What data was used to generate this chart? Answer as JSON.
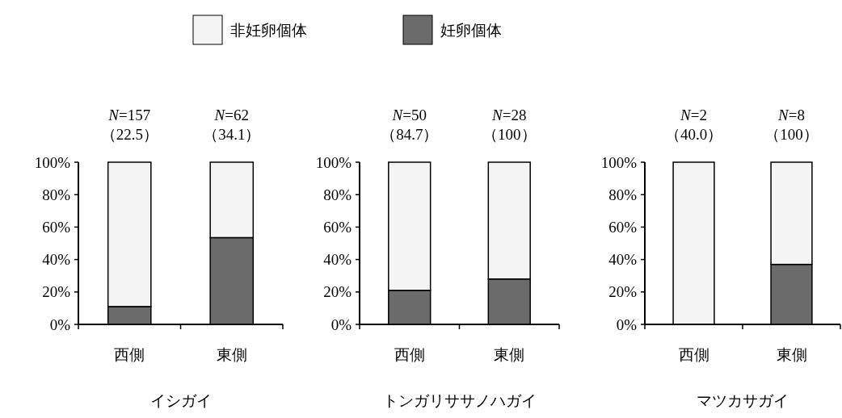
{
  "chart_data": [
    {
      "type": "bar",
      "stacked": true,
      "title": "イシガイ",
      "categories": [
        "西側",
        "東側"
      ],
      "ylim": [
        0,
        100
      ],
      "yticks": [
        {
          "value": 0,
          "label": "0%"
        },
        {
          "value": 20,
          "label": "20%"
        },
        {
          "value": 40,
          "label": "40%"
        },
        {
          "value": 60,
          "label": "60%"
        },
        {
          "value": 80,
          "label": "80%"
        },
        {
          "value": 100,
          "label": "100%"
        }
      ],
      "legend": "top",
      "series": [
        {
          "name": "妊卵個体",
          "color": "#6b6b6b",
          "values": [
            11,
            53.5
          ]
        },
        {
          "name": "非妊卵個体",
          "color": "#f4f4f4",
          "values": [
            89,
            46.5
          ]
        }
      ],
      "annotations": [
        {
          "text": "N=157\n（22.5）",
          "x": "西側",
          "y": 100
        },
        {
          "text": "N=62\n（34.1）",
          "x": "東側",
          "y": 100
        }
      ]
    },
    {
      "type": "bar",
      "stacked": true,
      "title": "トンガリササノハガイ",
      "categories": [
        "西側",
        "東側"
      ],
      "ylim": [
        0,
        100
      ],
      "yticks": [
        {
          "value": 0,
          "label": "0%"
        },
        {
          "value": 20,
          "label": "20%"
        },
        {
          "value": 40,
          "label": "40%"
        },
        {
          "value": 60,
          "label": "60%"
        },
        {
          "value": 80,
          "label": "80%"
        },
        {
          "value": 100,
          "label": "100%"
        }
      ],
      "series": [
        {
          "color": "#6b6b6b",
          "values": [
            21,
            28
          ]
        },
        {
          "color": "#f4f4f4",
          "values": [
            79,
            72
          ]
        }
      ],
      "annotations": [
        {
          "text": "N=50\n（84.7）",
          "x": "西側",
          "y": 100
        },
        {
          "text": "N=28\n（100）",
          "x": "東側",
          "y": 100
        }
      ]
    },
    {
      "type": "bar",
      "stacked": true,
      "title": "マツカサガイ",
      "categories": [
        "西側",
        "東側"
      ],
      "ylim": [
        0,
        100
      ],
      "yticks": [
        {
          "value": 0,
          "label": "0%"
        },
        {
          "value": 20,
          "label": "20%"
        },
        {
          "value": 40,
          "label": "40%"
        },
        {
          "value": 60,
          "label": "60%"
        },
        {
          "value": 80,
          "label": "80%"
        },
        {
          "value": 100,
          "label": "100%"
        }
      ],
      "series": [
        {
          "color": "#6b6b6b",
          "values": [
            0,
            37
          ]
        },
        {
          "color": "#f4f4f4",
          "values": [
            100,
            63
          ]
        }
      ],
      "annotations": [
        {
          "text": "N=2\n（40.0）",
          "x": "西側",
          "y": 100
        },
        {
          "text": "N=8\n（100）",
          "x": "東側",
          "y": 100
        }
      ]
    }
  ]
}
